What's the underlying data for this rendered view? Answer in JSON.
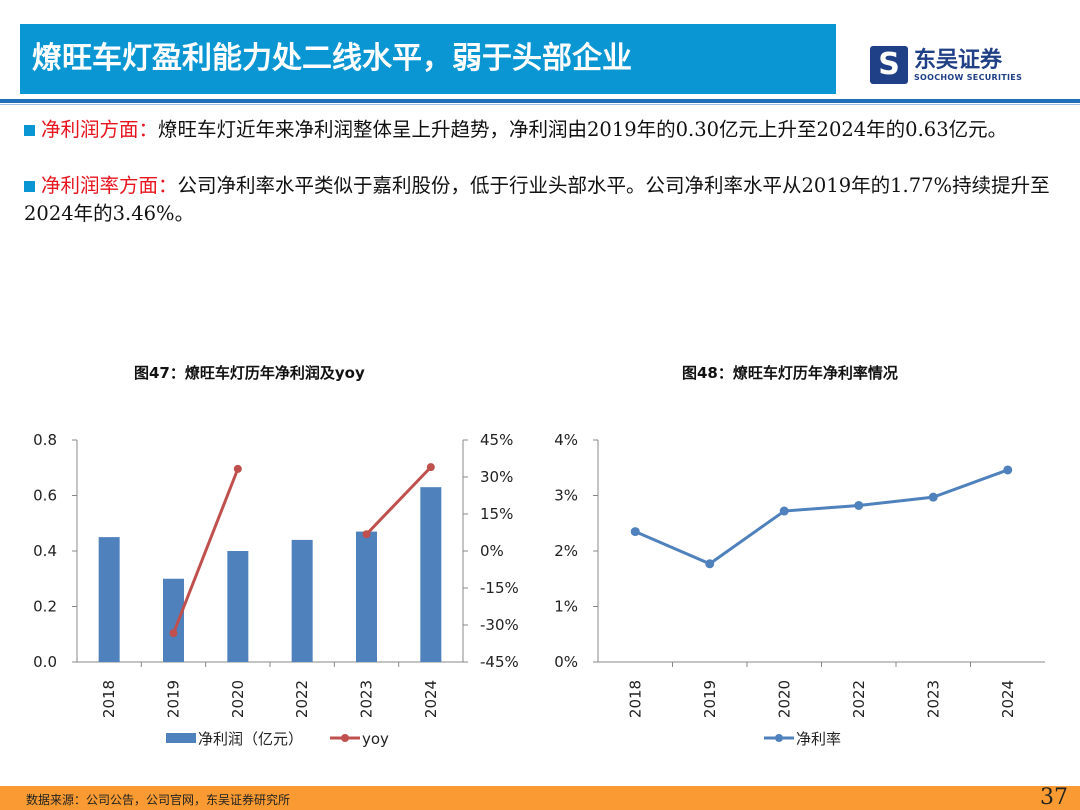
{
  "header": {
    "title": "燎旺车灯盈利能力处二线水平，弱于头部企业",
    "logo_cn": "东吴证券",
    "logo_en": "SOOCHOW SECURITIES"
  },
  "points": [
    {
      "label": "净利润方面：",
      "text": "燎旺车灯近年来净利润整体呈上升趋势，净利润由2019年的0.30亿元上升至2024年的0.63亿元。"
    },
    {
      "label": "净利润率方面：",
      "text": "公司净利率水平类似于嘉利股份，低于行业头部水平。公司净利率水平从2019年的1.77%持续提升至2024年的3.46%。"
    }
  ],
  "chart_data": [
    {
      "type": "bar",
      "title": "图47：燎旺车灯历年净利润及yoy",
      "categories": [
        "2018",
        "2019",
        "2020",
        "2022",
        "2023",
        "2024"
      ],
      "series": [
        {
          "name": "净利润（亿元）",
          "type": "bar",
          "axis": "left",
          "values": [
            0.45,
            0.3,
            0.4,
            0.44,
            0.47,
            0.63
          ]
        },
        {
          "name": "yoy",
          "type": "line",
          "axis": "right",
          "values": [
            null,
            -33.3,
            33.3,
            null,
            6.8,
            34.0
          ]
        }
      ],
      "ylim": [
        0,
        0.8
      ],
      "yticks": [
        "0.0",
        "0.2",
        "0.4",
        "0.6",
        "0.8"
      ],
      "y2lim": [
        -45,
        45
      ],
      "y2ticks": [
        "-45%",
        "-30%",
        "-15%",
        "0%",
        "15%",
        "30%",
        "45%"
      ],
      "legend": "bottom",
      "colors": {
        "bar": "#4f81bd",
        "line": "#c0504d"
      }
    },
    {
      "type": "line",
      "title": "图48：燎旺车灯历年净利率情况",
      "categories": [
        "2018",
        "2019",
        "2020",
        "2022",
        "2023",
        "2024"
      ],
      "series": [
        {
          "name": "净利率",
          "values": [
            2.35,
            1.77,
            2.72,
            2.82,
            2.97,
            3.46
          ]
        }
      ],
      "ylim": [
        0,
        4
      ],
      "yticks": [
        "0%",
        "1%",
        "2%",
        "3%",
        "4%"
      ],
      "legend": "bottom",
      "colors": {
        "line": "#4f81bd"
      }
    }
  ],
  "footer": {
    "source": "数据来源：公司公告，公司官网，东吴证券研究所",
    "page": "37"
  }
}
